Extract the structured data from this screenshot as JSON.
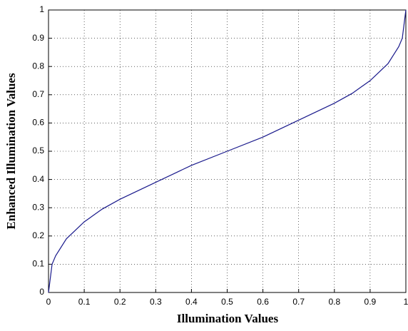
{
  "chart_data": {
    "type": "line",
    "x_label": "Illumination Values",
    "y_label": "Enhanced Illumination Values",
    "x": [
      0,
      0.01,
      0.02,
      0.05,
      0.1,
      0.15,
      0.2,
      0.3,
      0.4,
      0.5,
      0.6,
      0.7,
      0.8,
      0.85,
      0.9,
      0.95,
      0.98,
      0.99,
      1
    ],
    "series": [
      {
        "name": "curve",
        "color": "#1a1a8c",
        "values": [
          0,
          0.1,
          0.13,
          0.19,
          0.25,
          0.295,
          0.33,
          0.39,
          0.45,
          0.5,
          0.55,
          0.61,
          0.67,
          0.705,
          0.75,
          0.81,
          0.87,
          0.9,
          1
        ]
      }
    ],
    "xlim": [
      0,
      1
    ],
    "xticks": [
      0,
      0.1,
      0.2,
      0.3,
      0.4,
      0.5,
      0.6,
      0.7,
      0.8,
      0.9,
      1
    ],
    "ylim": [
      0,
      1
    ],
    "yticks": [
      0,
      0.1,
      0.2,
      0.3,
      0.4,
      0.5,
      0.6,
      0.7,
      0.8,
      0.9,
      1
    ],
    "grid": true
  }
}
